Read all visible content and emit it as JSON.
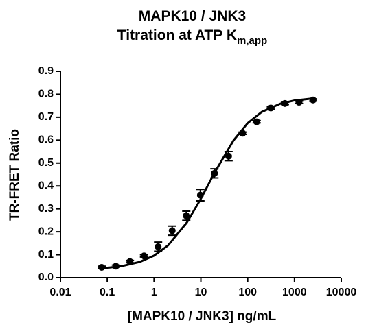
{
  "chart_data": {
    "type": "scatter",
    "title": [
      "MAPK10 / JNK3",
      "Titration at ATP K"
    ],
    "title_subscript": "m,app",
    "x_label": "[MAPK10 / JNK3] ng/mL",
    "y_label": "TR-FRET Ratio",
    "x_log": true,
    "color": "#000000",
    "points": {
      "x": [
        0.076,
        0.153,
        0.305,
        0.61,
        1.22,
        2.44,
        4.88,
        9.77,
        19.5,
        39.1,
        78.1,
        156,
        313,
        625,
        1250,
        2500
      ],
      "values": [
        0.045,
        0.05,
        0.07,
        0.095,
        0.135,
        0.205,
        0.27,
        0.36,
        0.455,
        0.53,
        0.63,
        0.68,
        0.74,
        0.76,
        0.765,
        0.775
      ],
      "errors": [
        0.005,
        0.005,
        0.005,
        0.005,
        0.02,
        0.02,
        0.02,
        0.025,
        0.02,
        0.02,
        0.005,
        0.005,
        0.005,
        0.005,
        0.005,
        0.005
      ]
    },
    "fit": {
      "x": [
        0.07,
        0.1,
        0.2,
        0.5,
        1,
        2,
        5,
        10,
        20,
        50,
        100,
        200,
        500,
        1000,
        2500
      ],
      "values": [
        0.041,
        0.043,
        0.05,
        0.069,
        0.096,
        0.141,
        0.24,
        0.344,
        0.461,
        0.599,
        0.674,
        0.723,
        0.759,
        0.773,
        0.782
      ]
    },
    "xlim": [
      0.01,
      10000
    ],
    "xticks": [
      0.01,
      0.1,
      1,
      10,
      100,
      1000,
      10000
    ],
    "ylim": [
      0,
      0.9
    ],
    "yticks": [
      {
        "value": 0,
        "label": "0.0"
      },
      0.1,
      0.2,
      0.3,
      0.4,
      0.5,
      0.6,
      0.7,
      0.8,
      0.9
    ]
  }
}
